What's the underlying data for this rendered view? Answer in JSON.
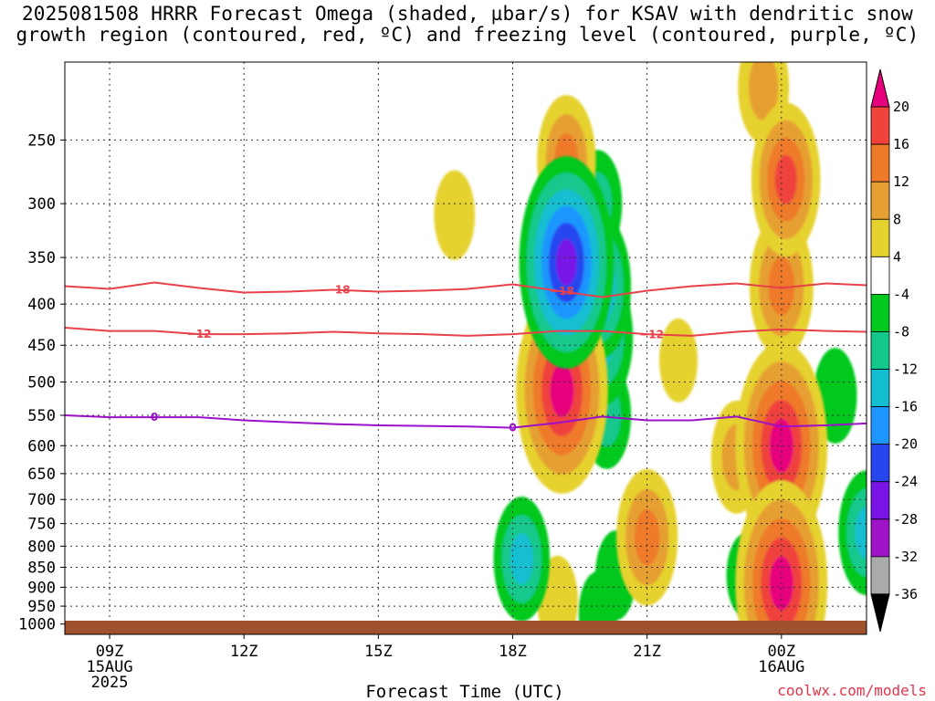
{
  "title_line1": "2025081508 HRRR Forecast Omega (shaded, µbar/s) for KSAV with dendritic snow",
  "title_line2": "growth region (contoured, red, ºC) and freezing level (contoured, purple, ºC)",
  "credit": "coolwx.com/models",
  "chart_data": {
    "type": "heatmap",
    "xlabel": "Forecast Time (UTC)",
    "ylabel": "",
    "x_ticks": [
      {
        "label": "09Z",
        "sub1": "15AUG",
        "sub2": "2025",
        "hour": 9
      },
      {
        "label": "12Z",
        "sub1": "",
        "sub2": "",
        "hour": 12
      },
      {
        "label": "15Z",
        "sub1": "",
        "sub2": "",
        "hour": 15
      },
      {
        "label": "18Z",
        "sub1": "",
        "sub2": "",
        "hour": 18
      },
      {
        "label": "21Z",
        "sub1": "",
        "sub2": "",
        "hour": 21
      },
      {
        "label": "00Z",
        "sub1": "16AUG",
        "sub2": "",
        "hour": 24
      }
    ],
    "xlim_hours": [
      8,
      25.9
    ],
    "y_ticks": [
      "250",
      "300",
      "350",
      "400",
      "450",
      "500",
      "550",
      "600",
      "650",
      "700",
      "750",
      "800",
      "850",
      "900",
      "950",
      "1000"
    ],
    "ylim_hpa": [
      1030,
      200
    ],
    "y_scale": "log-pressure",
    "grid": true,
    "colorbar": {
      "labels": [
        "20",
        "16",
        "12",
        "8",
        "4",
        "-4",
        "-8",
        "-12",
        "-16",
        "-20",
        "-24",
        "-28",
        "-32",
        "-36"
      ],
      "bins": [
        {
          "from": 20,
          "to": 99,
          "color": "#e6007e"
        },
        {
          "from": 16,
          "to": 20,
          "color": "#f0433c"
        },
        {
          "from": 12,
          "to": 16,
          "color": "#ee7a2a"
        },
        {
          "from": 8,
          "to": 12,
          "color": "#e6a033"
        },
        {
          "from": 4,
          "to": 8,
          "color": "#e5d22f"
        },
        {
          "from": -4,
          "to": 4,
          "color": "#ffffff"
        },
        {
          "from": -8,
          "to": -4,
          "color": "#00c81e"
        },
        {
          "from": -12,
          "to": -8,
          "color": "#14c88c"
        },
        {
          "from": -16,
          "to": -12,
          "color": "#14bed2"
        },
        {
          "from": -20,
          "to": -16,
          "color": "#1e96ff"
        },
        {
          "from": -24,
          "to": -20,
          "color": "#2846f0"
        },
        {
          "from": -28,
          "to": -24,
          "color": "#7814e6"
        },
        {
          "from": -32,
          "to": -28,
          "color": "#a014c8"
        },
        {
          "from": -36,
          "to": -32,
          "color": "#aaaaaa"
        },
        {
          "from": -99,
          "to": -36,
          "color": "#000000"
        }
      ]
    },
    "omega_features": [
      {
        "hour": 16.7,
        "p": 310,
        "peak": 6
      },
      {
        "hour": 19.2,
        "p": 265,
        "peak": 13
      },
      {
        "hour": 19.1,
        "p": 512,
        "peak": 26
      },
      {
        "hour": 19.2,
        "p": 355,
        "peak": -27
      },
      {
        "hour": 19.9,
        "p": 380,
        "peak": -16
      },
      {
        "hour": 19.9,
        "p": 300,
        "peak": -9
      },
      {
        "hour": 20.1,
        "p": 550,
        "peak": -9
      },
      {
        "hour": 20.0,
        "p": 440,
        "peak": -14
      },
      {
        "hour": 18.2,
        "p": 830,
        "peak": -12
      },
      {
        "hour": 19.0,
        "p": 935,
        "peak": 6
      },
      {
        "hour": 20.3,
        "p": 870,
        "peak": -6
      },
      {
        "hour": 19.9,
        "p": 970,
        "peak": -5
      },
      {
        "hour": 21.0,
        "p": 780,
        "peak": 14
      },
      {
        "hour": 21.7,
        "p": 470,
        "peak": 5
      },
      {
        "hour": 23.0,
        "p": 620,
        "peak": 10
      },
      {
        "hour": 24.0,
        "p": 600,
        "peak": 26
      },
      {
        "hour": 24.0,
        "p": 890,
        "peak": 26
      },
      {
        "hour": 24.1,
        "p": 280,
        "peak": 17
      },
      {
        "hour": 24.0,
        "p": 380,
        "peak": 15
      },
      {
        "hour": 23.6,
        "p": 215,
        "peak": 10
      },
      {
        "hour": 25.2,
        "p": 520,
        "peak": -7
      },
      {
        "hour": 25.9,
        "p": 770,
        "peak": -12
      },
      {
        "hour": 23.2,
        "p": 870,
        "peak": -5
      }
    ],
    "series": [
      {
        "name": "-18",
        "color": "#e8414a",
        "points": [
          [
            8.0,
            380
          ],
          [
            9.0,
            383
          ],
          [
            10.0,
            376
          ],
          [
            11.0,
            382
          ],
          [
            12.0,
            387
          ],
          [
            13.0,
            386
          ],
          [
            14.0,
            384
          ],
          [
            15.0,
            386
          ],
          [
            16.0,
            385
          ],
          [
            17.0,
            383
          ],
          [
            18.0,
            378
          ],
          [
            19.0,
            385
          ],
          [
            20.0,
            392
          ],
          [
            21.0,
            385
          ],
          [
            22.0,
            380
          ],
          [
            23.0,
            377
          ],
          [
            24.0,
            382
          ],
          [
            25.0,
            377
          ],
          [
            25.9,
            379
          ]
        ],
        "label_hours": [
          14.1,
          19.1
        ]
      },
      {
        "name": "-12",
        "color": "#e8414a",
        "points": [
          [
            8.0,
            428
          ],
          [
            9.0,
            432
          ],
          [
            10.0,
            432
          ],
          [
            11.0,
            436
          ],
          [
            12.0,
            436
          ],
          [
            13.0,
            435
          ],
          [
            14.0,
            433
          ],
          [
            15.0,
            435
          ],
          [
            16.0,
            436
          ],
          [
            17.0,
            438
          ],
          [
            18.0,
            436
          ],
          [
            19.0,
            432
          ],
          [
            20.0,
            432
          ],
          [
            21.0,
            436
          ],
          [
            22.0,
            438
          ],
          [
            23.0,
            433
          ],
          [
            24.0,
            430
          ],
          [
            25.0,
            432
          ],
          [
            25.9,
            433
          ]
        ],
        "label_hours": [
          11.0,
          21.1
        ]
      },
      {
        "name": "0",
        "color": "#9b10c8",
        "points": [
          [
            8.0,
            550
          ],
          [
            9.0,
            553
          ],
          [
            10.0,
            553
          ],
          [
            11.0,
            553
          ],
          [
            12.0,
            558
          ],
          [
            13.0,
            561
          ],
          [
            14.0,
            564
          ],
          [
            15.0,
            566
          ],
          [
            16.0,
            567
          ],
          [
            17.0,
            568
          ],
          [
            18.0,
            570
          ],
          [
            19.0,
            562
          ],
          [
            20.0,
            552
          ],
          [
            21.0,
            558
          ],
          [
            22.0,
            558
          ],
          [
            23.0,
            552
          ],
          [
            24.0,
            568
          ],
          [
            25.0,
            566
          ],
          [
            25.9,
            563
          ]
        ],
        "label_hours": [
          10.0,
          18.0
        ]
      }
    ]
  }
}
